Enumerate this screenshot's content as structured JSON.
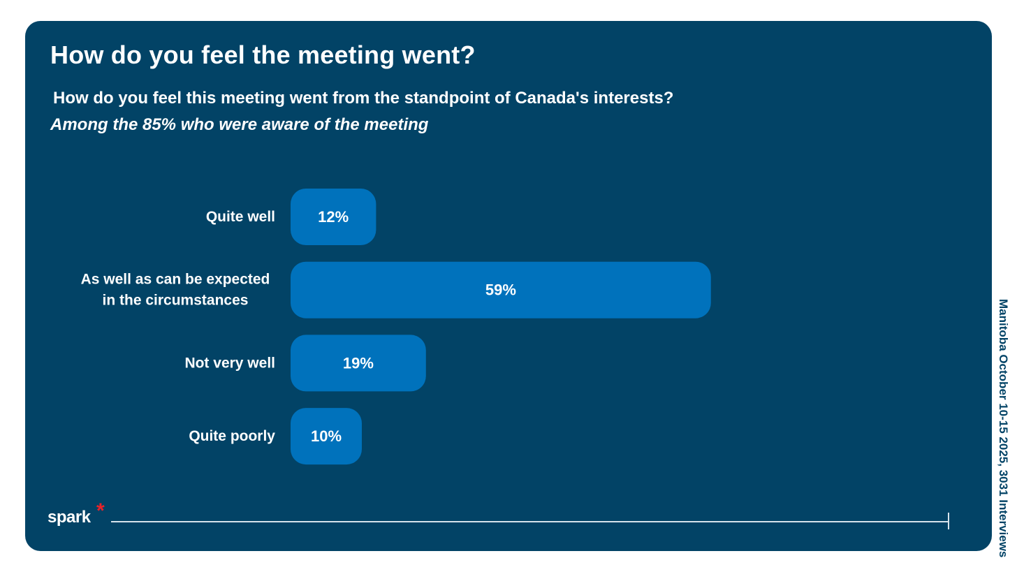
{
  "header": {
    "title": "How do you feel the meeting went?",
    "question": "How do you feel this meeting went from the standpoint of Canada's interests?",
    "subtitle": "Among the 85% who were aware of the meeting"
  },
  "chart_data": {
    "type": "bar",
    "orientation": "horizontal",
    "categories": [
      [
        "Quite well"
      ],
      [
        "As well as can be expected",
        "in the circumstances"
      ],
      [
        "Not very well"
      ],
      [
        "Quite poorly"
      ]
    ],
    "values": [
      12,
      59,
      19,
      10
    ],
    "value_labels": [
      "12%",
      "59%",
      "19%",
      "10%"
    ],
    "unit": "%",
    "xlim": [
      0,
      100
    ],
    "grid": false,
    "bar_color": "#0072BC"
  },
  "footer": {
    "logo": "spark",
    "logo_mark": "*",
    "side_note": "Manitoba October 10-15 2025, 3031 Interviews"
  },
  "colors": {
    "panel": "#024366",
    "bar": "#0072BC",
    "text": "#FFFFFF",
    "accent": "#E8232A"
  }
}
